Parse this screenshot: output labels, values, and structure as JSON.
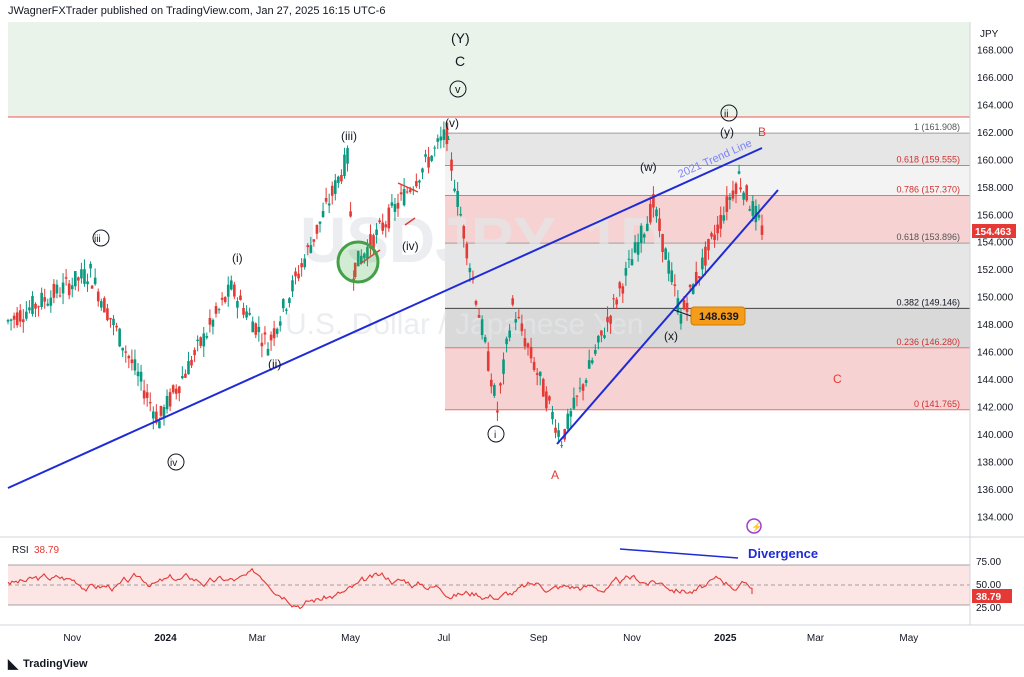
{
  "header": {
    "published": "JWagnerFXTrader published on TradingView.com, Jan 27, 2025 16:15 UTC-6"
  },
  "footer": {
    "brand": "TradingView",
    "logo_icon": "tradingview-logo-icon"
  },
  "price_axis": {
    "currency": "JPY",
    "ticks": [
      "168.000",
      "166.000",
      "164.000",
      "162.000",
      "160.000",
      "158.000",
      "156.000",
      "154.000",
      "152.000",
      "150.000",
      "148.000",
      "146.000",
      "144.000",
      "142.000",
      "140.000",
      "138.000",
      "136.000",
      "134.000"
    ],
    "last_price_label": "154.463"
  },
  "time_axis": {
    "labels": [
      "Nov",
      "2024",
      "Mar",
      "May",
      "Jul",
      "Sep",
      "Nov",
      "2025",
      "Mar",
      "May"
    ]
  },
  "watermark": {
    "symbol": "USDJPY, 1D",
    "name": "U.S. Dollar / Japanese Yen"
  },
  "fibonacci": {
    "levels": [
      {
        "ratio": "1",
        "value": 161.908,
        "label": "1 (161.908)"
      },
      {
        "ratio": "0.618",
        "value": 159.555,
        "label": "0.618 (159.555)"
      },
      {
        "ratio": "0.786",
        "value": 157.37,
        "label": "0.786 (157.370)"
      },
      {
        "ratio": "0.618",
        "value": 153.896,
        "label": "0.618 (153.896)"
      },
      {
        "ratio": "0.382",
        "value": 149.146,
        "label": "0.382 (149.146)"
      },
      {
        "ratio": "0.236",
        "value": 146.28,
        "label": "0.236 (146.280)"
      },
      {
        "ratio": "0",
        "value": 141.765,
        "label": "0 (141.765)"
      }
    ]
  },
  "annotations": {
    "wave_labels": [
      "(Y)",
      "C",
      "v",
      "(v)",
      "(iii)",
      "iii",
      "(i)",
      "(ii)",
      "(iv)",
      "iv",
      "i",
      "A",
      "(w)",
      "(x)",
      "(y)",
      "ii",
      "B",
      "C"
    ],
    "trend_line_label": "2021 Trend Line",
    "price_callout": "148.639",
    "divergence": "Divergence",
    "colors": {
      "wave": "#131722",
      "correction": "#e53935",
      "trendline": "#1e2bd6",
      "fib_band": "#f7d7d7",
      "grey_band": "#e0e0e0",
      "green_zone": "#e9f3e9",
      "callout": "#f59c1a"
    }
  },
  "rsi_pane": {
    "title": "RSI",
    "value_label": "38.79",
    "ticks": [
      "75.00",
      "50.00",
      "25.00"
    ]
  },
  "chart_data": [
    {
      "type": "candlestick",
      "title": "USDJPY, 1D",
      "ylabel": "JPY",
      "ylim": [
        132.5,
        170
      ],
      "x_range": [
        "2023-09-20",
        "2025-06-10"
      ],
      "key_points": [
        {
          "date": "2023-09-20",
          "close": 148.2
        },
        {
          "date": "2023-11-13",
          "close": 151.8
        },
        {
          "date": "2023-12-28",
          "close": 140.9
        },
        {
          "date": "2024-02-13",
          "close": 150.6
        },
        {
          "date": "2024-03-08",
          "close": 146.5
        },
        {
          "date": "2024-04-29",
          "close": 160.1
        },
        {
          "date": "2024-05-03",
          "close": 151.9
        },
        {
          "date": "2024-07-03",
          "close": 161.9
        },
        {
          "date": "2024-08-05",
          "close": 141.7
        },
        {
          "date": "2024-08-15",
          "close": 149.3
        },
        {
          "date": "2024-09-16",
          "close": 139.6
        },
        {
          "date": "2024-11-15",
          "close": 156.7
        },
        {
          "date": "2024-12-03",
          "close": 148.6
        },
        {
          "date": "2025-01-10",
          "close": 158.8
        },
        {
          "date": "2025-01-27",
          "close": 154.46
        }
      ],
      "last_price": 154.463
    },
    {
      "type": "line",
      "title": "RSI",
      "ylim": [
        0,
        100
      ],
      "levels": [
        70,
        50,
        30
      ],
      "last_value": 38.79
    }
  ]
}
